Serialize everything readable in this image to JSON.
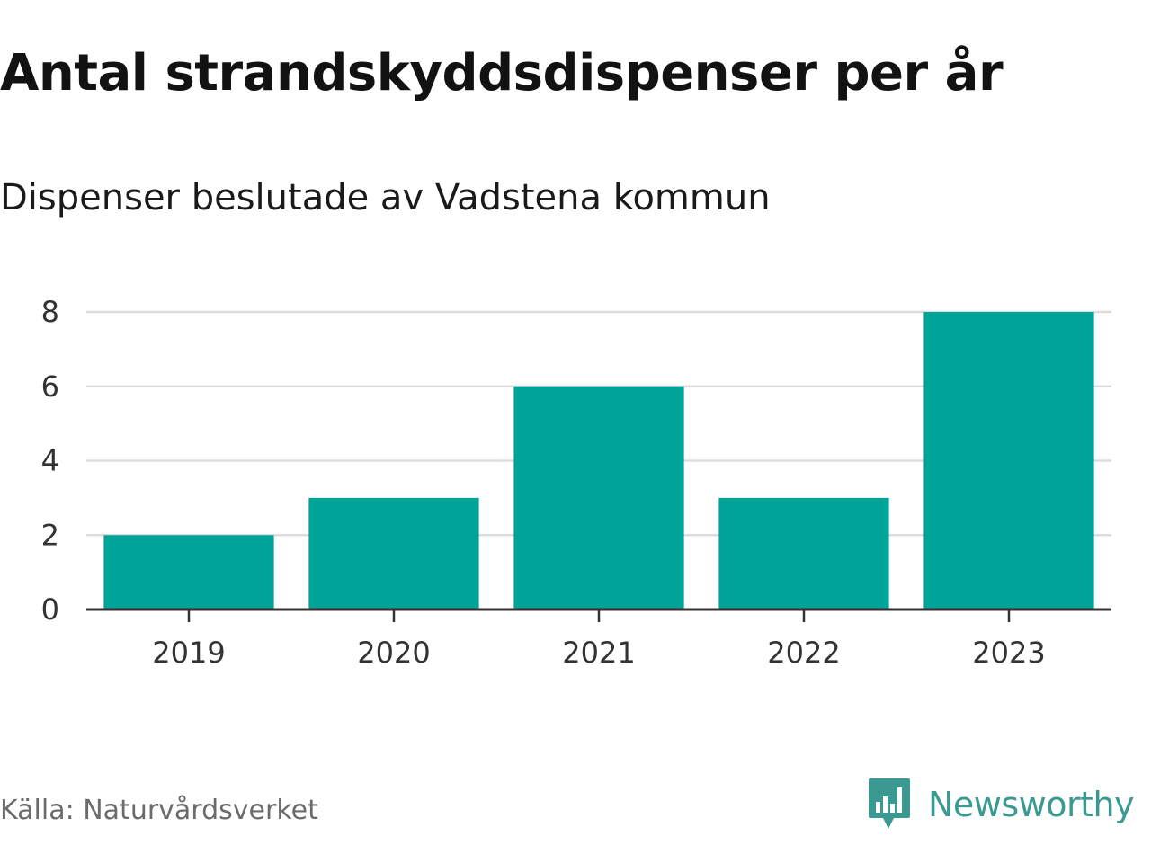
{
  "header": {
    "title": "Antal strandskyddsdispenser per år",
    "subtitle": "Dispenser beslutade av Vadstena kommun"
  },
  "footer": {
    "source": "Källa: Naturvårdsverket",
    "brand": "Newsworthy",
    "brand_icon": "newsworthy-logo-icon"
  },
  "colors": {
    "bar": "#00a398",
    "grid": "#dddddd",
    "axis": "#333333",
    "brand": "#3a9a92"
  },
  "chart_data": {
    "type": "bar",
    "categories": [
      "2019",
      "2020",
      "2021",
      "2022",
      "2023"
    ],
    "values": [
      2,
      3,
      6,
      3,
      8
    ],
    "title": "Antal strandskyddsdispenser per år",
    "subtitle": "Dispenser beslutade av Vadstena kommun",
    "xlabel": "",
    "ylabel": "",
    "ylim": [
      0,
      8
    ],
    "yticks": [
      "0",
      "2",
      "4",
      "6",
      "8"
    ],
    "grid": true,
    "legend": "none"
  }
}
